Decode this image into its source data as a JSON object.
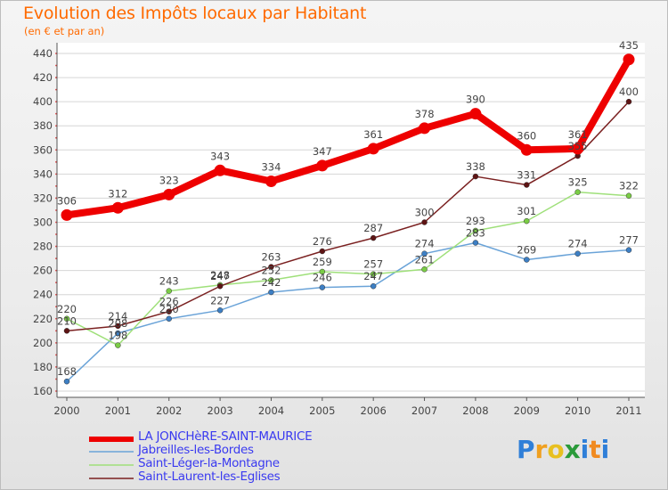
{
  "title": "Evolution des Impôts locaux par Habitant",
  "subtitle": "(en € et par an)",
  "brand": "Proxiti",
  "colors": {
    "title": "#ff6a00",
    "grid": "#d6d6d6",
    "axis": "#555555",
    "legend_text": "#3a3af0"
  },
  "chart_data": {
    "type": "line",
    "x": [
      "2000",
      "2001",
      "2002",
      "2003",
      "2004",
      "2005",
      "2006",
      "2007",
      "2008",
      "2009",
      "2010",
      "2011"
    ],
    "ylim": [
      160,
      440
    ],
    "yticks": [
      160,
      180,
      200,
      220,
      240,
      260,
      280,
      300,
      320,
      340,
      360,
      380,
      400,
      420,
      440
    ],
    "grid": true,
    "legend_position": "bottom-left",
    "series": [
      {
        "name": "LA JONCHèRE-SAINT-MAURICE",
        "color": "#ee0000",
        "marker": "#ee0000",
        "width": 8,
        "values": [
          306,
          312,
          323,
          343,
          334,
          347,
          361,
          378,
          390,
          360,
          361,
          435
        ],
        "labels": [
          "306",
          "312",
          "323",
          "343",
          "334",
          "347",
          "361",
          "378",
          "390",
          "360",
          "361",
          "435"
        ]
      },
      {
        "name": "Jabreilles-les-Bordes",
        "color": "#6aa3d8",
        "marker": "#3d7fc4",
        "width": 1.5,
        "values": [
          168,
          208,
          220,
          227,
          242,
          246,
          247,
          274,
          283,
          269,
          274,
          277
        ],
        "labels": [
          "168",
          "208",
          "220",
          "227",
          "242",
          "246",
          "247",
          "274",
          "283",
          "269",
          "274",
          "277"
        ]
      },
      {
        "name": "Saint-Léger-la-Montagne",
        "color": "#9fe07a",
        "marker": "#7acc45",
        "width": 1.5,
        "values": [
          220,
          198,
          243,
          248,
          252,
          259,
          257,
          261,
          293,
          301,
          325,
          322
        ],
        "labels": [
          "220",
          "198",
          "243",
          "248",
          "252",
          "259",
          "257",
          "261",
          "293",
          "301",
          "325",
          "322"
        ]
      },
      {
        "name": "Saint-Laurent-les-Eglises",
        "color": "#7a2020",
        "marker": "#5e1414",
        "width": 1.5,
        "values": [
          210,
          214,
          226,
          247,
          263,
          276,
          287,
          300,
          338,
          331,
          355,
          400
        ],
        "labels": [
          "210",
          "214",
          "226",
          "247",
          "263",
          "276",
          "287",
          "300",
          "338",
          "331",
          "355",
          "400"
        ]
      }
    ]
  }
}
